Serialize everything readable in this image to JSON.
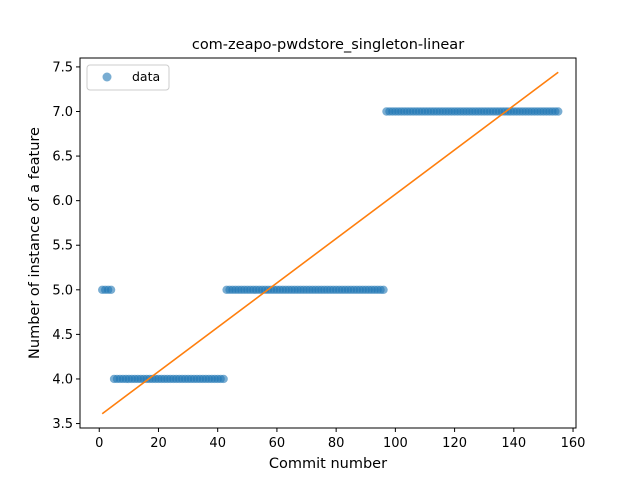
{
  "chart_data": {
    "type": "scatter",
    "title": "com-zeapo-pwdstore_singleton-linear",
    "xlabel": "Commit number",
    "ylabel": "Number of instance of a feature",
    "xlim": [
      -6.5,
      161
    ],
    "ylim": [
      3.45,
      7.6
    ],
    "xticks": [
      0,
      20,
      40,
      60,
      80,
      100,
      120,
      140,
      160
    ],
    "yticks": [
      3.5,
      4.0,
      4.5,
      5.0,
      5.5,
      6.0,
      6.5,
      7.0,
      7.5
    ],
    "xtick_labels": [
      "0",
      "20",
      "40",
      "60",
      "80",
      "100",
      "120",
      "140",
      "160"
    ],
    "ytick_labels": [
      "3.5",
      "4.0",
      "4.5",
      "5.0",
      "5.5",
      "6.0",
      "6.5",
      "7.0",
      "7.5"
    ],
    "legend": {
      "location": "upper-left",
      "entries": [
        "data"
      ]
    },
    "grid": false,
    "series": [
      {
        "name": "data",
        "kind": "points",
        "color": "#1f77b4",
        "segments": [
          {
            "x_from": 1,
            "x_to": 4,
            "y": 5.0
          },
          {
            "x_from": 5,
            "x_to": 42,
            "y": 4.0
          },
          {
            "x_from": 43,
            "x_to": 96,
            "y": 5.0
          },
          {
            "x_from": 97,
            "x_to": 155,
            "y": 7.0
          }
        ]
      },
      {
        "kind": "fit-line",
        "color": "#ff7f0e",
        "x": [
          1,
          155
        ],
        "y": [
          3.61,
          7.44
        ]
      }
    ]
  }
}
